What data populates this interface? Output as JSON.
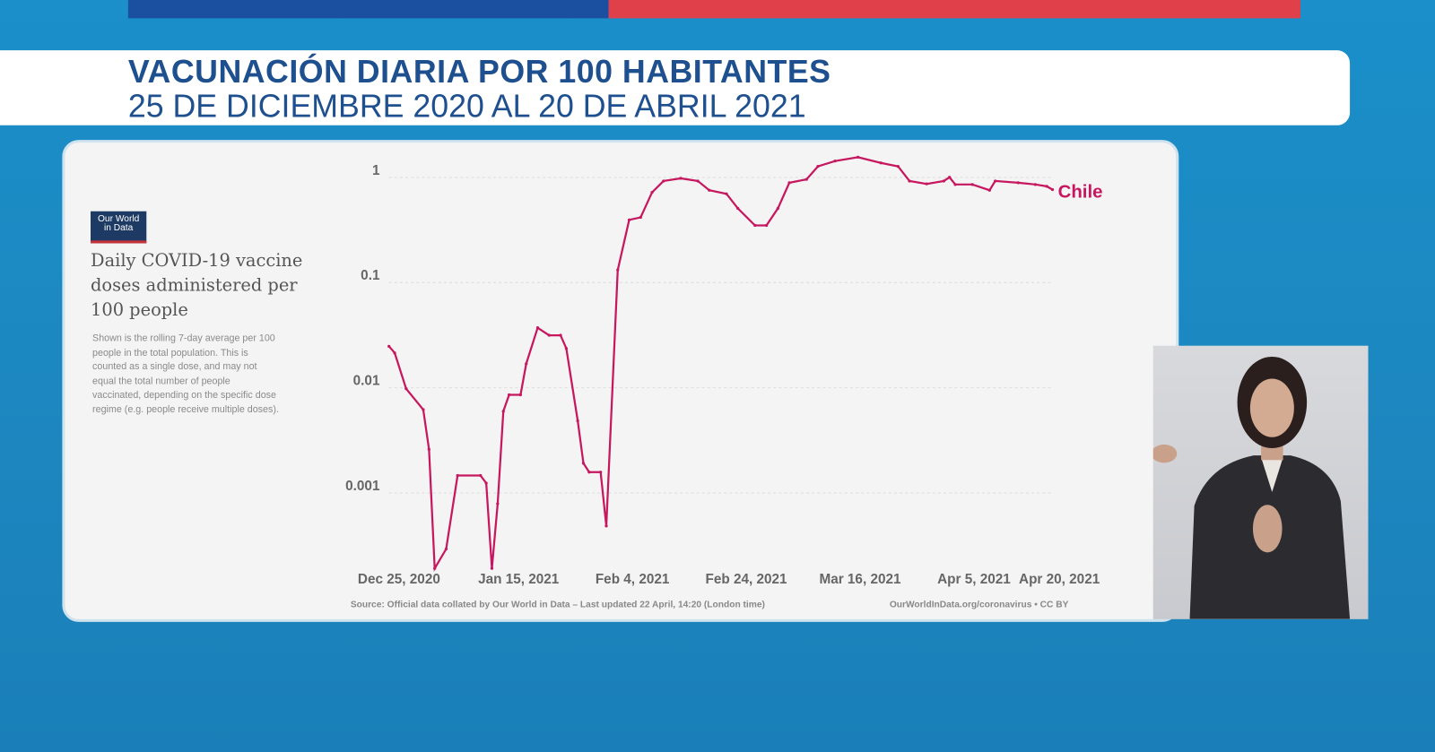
{
  "banner": {
    "title": "VACUNACIÓN DIARIA POR 100 HABITANTES",
    "subtitle": "25 DE DICIEMBRE 2020 AL 20 DE ABRIL 2021"
  },
  "colors": {
    "top_bar_left": "#1b4fa0",
    "top_bar_right": "#e0404a",
    "title_text": "#1e4f8e",
    "series": "#c6175f"
  },
  "logo": {
    "text_line1": "Our World",
    "text_line2": "in Data"
  },
  "chart_data": {
    "type": "line",
    "title": "Daily COVID-19 vaccine doses administered per 100 people",
    "subtitle": "Shown is the rolling 7-day average per 100 people in the total population. This is counted as a single dose, and may not equal the total number of people vaccinated, depending on the specific dose regime (e.g. people receive multiple doses).",
    "y_scale": "log",
    "ylim": [
      0.00017,
      1.5
    ],
    "y_ticks": [
      "1",
      "0.1",
      "0.01",
      "0.001"
    ],
    "y_tick_values": [
      1,
      0.1,
      0.01,
      0.001
    ],
    "x_ticks": [
      "Dec 25, 2020",
      "Jan 15, 2021",
      "Feb 4, 2021",
      "Feb 24, 2021",
      "Mar 16, 2021",
      "Apr 5, 2021",
      "Apr 20, 2021"
    ],
    "x_tick_dates": [
      "2020-12-25",
      "2021-01-15",
      "2021-02-04",
      "2021-02-24",
      "2021-03-16",
      "2021-04-05",
      "2021-04-20"
    ],
    "xlim": [
      "2020-12-25",
      "2021-04-20"
    ],
    "grid": "horizontal dashed",
    "series": [
      {
        "name": "Chile",
        "points": [
          [
            "2020-12-25",
            0.022
          ],
          [
            "2020-12-26",
            0.019
          ],
          [
            "2020-12-28",
            0.0087
          ],
          [
            "2020-12-31",
            0.0055
          ],
          [
            "2021-01-01",
            0.0023
          ],
          [
            "2021-01-02",
            0.00017
          ],
          [
            "2021-01-04",
            0.00026
          ],
          [
            "2021-01-06",
            0.0013
          ],
          [
            "2021-01-10",
            0.0013
          ],
          [
            "2021-01-11",
            0.0011
          ],
          [
            "2021-01-12",
            0.00017
          ],
          [
            "2021-01-13",
            0.0007
          ],
          [
            "2021-01-14",
            0.0053
          ],
          [
            "2021-01-15",
            0.0076
          ],
          [
            "2021-01-17",
            0.0076
          ],
          [
            "2021-01-18",
            0.015
          ],
          [
            "2021-01-20",
            0.033
          ],
          [
            "2021-01-22",
            0.028
          ],
          [
            "2021-01-24",
            0.028
          ],
          [
            "2021-01-25",
            0.021
          ],
          [
            "2021-01-27",
            0.0043
          ],
          [
            "2021-01-28",
            0.0017
          ],
          [
            "2021-01-29",
            0.0014
          ],
          [
            "2021-01-31",
            0.0014
          ],
          [
            "2021-02-01",
            0.00043
          ],
          [
            "2021-02-03",
            0.117
          ],
          [
            "2021-02-05",
            0.35
          ],
          [
            "2021-02-07",
            0.37
          ],
          [
            "2021-02-09",
            0.64
          ],
          [
            "2021-02-11",
            0.82
          ],
          [
            "2021-02-14",
            0.87
          ],
          [
            "2021-02-17",
            0.82
          ],
          [
            "2021-02-19",
            0.67
          ],
          [
            "2021-02-22",
            0.62
          ],
          [
            "2021-02-24",
            0.45
          ],
          [
            "2021-02-27",
            0.31
          ],
          [
            "2021-03-01",
            0.31
          ],
          [
            "2021-03-03",
            0.45
          ],
          [
            "2021-03-05",
            0.79
          ],
          [
            "2021-03-08",
            0.85
          ],
          [
            "2021-03-10",
            1.13
          ],
          [
            "2021-03-13",
            1.27
          ],
          [
            "2021-03-17",
            1.38
          ],
          [
            "2021-03-21",
            1.22
          ],
          [
            "2021-03-24",
            1.13
          ],
          [
            "2021-03-26",
            0.82
          ],
          [
            "2021-03-29",
            0.77
          ],
          [
            "2021-04-01",
            0.82
          ],
          [
            "2021-04-02",
            0.89
          ],
          [
            "2021-04-03",
            0.76
          ],
          [
            "2021-04-06",
            0.76
          ],
          [
            "2021-04-09",
            0.67
          ],
          [
            "2021-04-10",
            0.82
          ],
          [
            "2021-04-14",
            0.79
          ],
          [
            "2021-04-17",
            0.76
          ],
          [
            "2021-04-19",
            0.73
          ],
          [
            "2021-04-20",
            0.68
          ]
        ]
      }
    ],
    "source": "Source: Official data collated by Our World in Data – Last updated 22 April, 14:20 (London time)",
    "url": "OurWorldInData.org/coronavirus • CC BY"
  }
}
